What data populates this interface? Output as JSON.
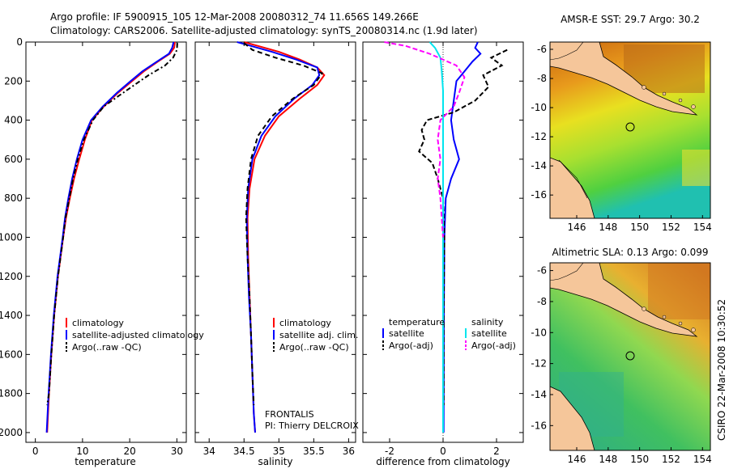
{
  "header": {
    "line1": "Argo profile: IF 5900915_105 12-Mar-2008 20080312_74 11.656S 149.266E",
    "line2": "Climatology: CARS2006. Satellite-adjusted climatology: synTS_20080314.nc (1.9d later)"
  },
  "side_label": "CSIRO 22-Mar-2008 10:30:52",
  "colors": {
    "climatology": "#ff0000",
    "satellite": "#0000ff",
    "argo": "#000000",
    "salinity_satellite": "#00e5ee",
    "salinity_argo": "#ff00ff",
    "land": "#f5c69a"
  },
  "chart_data": [
    {
      "id": "temperature",
      "type": "line",
      "xlabel": "temperature",
      "ylabel": "",
      "xlim": [
        -2,
        32
      ],
      "ylim": [
        2050,
        0
      ],
      "xticks": [
        0,
        10,
        20,
        30
      ],
      "yticks": [
        0,
        200,
        400,
        600,
        800,
        1000,
        1200,
        1400,
        1600,
        1800,
        2000
      ],
      "legend": [
        {
          "label": "climatology",
          "color": "#ff0000"
        },
        {
          "label": "satellite-adjusted climatology",
          "color": "#0000ff"
        },
        {
          "label": "Argo(..raw -QC)",
          "color": "#000000"
        }
      ],
      "series": [
        {
          "name": "climatology",
          "color": "#ff0000",
          "dash": "",
          "points": [
            [
              29.6,
              0
            ],
            [
              29.4,
              30
            ],
            [
              28.5,
              60
            ],
            [
              26,
              100
            ],
            [
              23,
              150
            ],
            [
              20.5,
              200
            ],
            [
              17.5,
              260
            ],
            [
              14.5,
              330
            ],
            [
              12,
              400
            ],
            [
              10.5,
              500
            ],
            [
              9.3,
              600
            ],
            [
              8.2,
              700
            ],
            [
              7.3,
              800
            ],
            [
              6.5,
              900
            ],
            [
              5.9,
              1000
            ],
            [
              4.8,
              1200
            ],
            [
              4,
              1400
            ],
            [
              3.4,
              1600
            ],
            [
              2.9,
              1800
            ],
            [
              2.5,
              2000
            ]
          ]
        },
        {
          "name": "satellite",
          "color": "#0000ff",
          "dash": "",
          "points": [
            [
              29.3,
              0
            ],
            [
              29,
              30
            ],
            [
              28.3,
              60
            ],
            [
              25.8,
              100
            ],
            [
              22.7,
              150
            ],
            [
              20.2,
              200
            ],
            [
              17.3,
              260
            ],
            [
              14.3,
              330
            ],
            [
              11.8,
              400
            ],
            [
              10,
              500
            ],
            [
              8.8,
              600
            ],
            [
              7.8,
              700
            ],
            [
              7,
              800
            ],
            [
              6.3,
              900
            ],
            [
              5.8,
              1000
            ],
            [
              4.7,
              1200
            ],
            [
              3.9,
              1400
            ],
            [
              3.3,
              1600
            ],
            [
              2.8,
              1800
            ],
            [
              2.4,
              2000
            ]
          ]
        },
        {
          "name": "Argo",
          "color": "#000000",
          "dash": "6,3,2,3",
          "points": [
            [
              30.1,
              5
            ],
            [
              30,
              40
            ],
            [
              29.2,
              80
            ],
            [
              27.5,
              120
            ],
            [
              24,
              170
            ],
            [
              21,
              220
            ],
            [
              18,
              270
            ],
            [
              14.5,
              330
            ],
            [
              12.2,
              400
            ],
            [
              10.3,
              500
            ],
            [
              9,
              600
            ],
            [
              8,
              700
            ],
            [
              7.2,
              800
            ],
            [
              6.4,
              900
            ],
            [
              5.9,
              1000
            ],
            [
              4.8,
              1200
            ],
            [
              4,
              1400
            ],
            [
              3.4,
              1600
            ],
            [
              2.9,
              1800
            ],
            [
              2.5,
              1860
            ]
          ]
        }
      ]
    },
    {
      "id": "salinity",
      "type": "line",
      "xlabel": "salinity",
      "ylabel": "",
      "xlim": [
        33.8,
        36.1
      ],
      "ylim": [
        2050,
        0
      ],
      "xticks": [
        34,
        34.5,
        35,
        35.5,
        36
      ],
      "legend": [
        {
          "label": "climatology",
          "color": "#ff0000"
        },
        {
          "label": "satellite adj. clim.",
          "color": "#0000ff"
        },
        {
          "label": "Argo(..raw -QC)",
          "color": "#000000"
        }
      ],
      "annotation": [
        "FRONTALIS",
        "PI: Thierry DELCROIX"
      ],
      "series": [
        {
          "name": "climatology",
          "color": "#ff0000",
          "dash": "",
          "points": [
            [
              34.5,
              0
            ],
            [
              34.7,
              20
            ],
            [
              35.0,
              50
            ],
            [
              35.3,
              90
            ],
            [
              35.55,
              130
            ],
            [
              35.65,
              170
            ],
            [
              35.55,
              220
            ],
            [
              35.3,
              290
            ],
            [
              35.0,
              380
            ],
            [
              34.8,
              480
            ],
            [
              34.65,
              600
            ],
            [
              34.58,
              750
            ],
            [
              34.55,
              900
            ],
            [
              34.56,
              1100
            ],
            [
              34.58,
              1300
            ],
            [
              34.6,
              1500
            ],
            [
              34.62,
              1700
            ],
            [
              34.64,
              1900
            ],
            [
              34.66,
              2000
            ]
          ]
        },
        {
          "name": "satellite",
          "color": "#0000ff",
          "dash": "",
          "points": [
            [
              34.4,
              0
            ],
            [
              34.6,
              20
            ],
            [
              34.9,
              50
            ],
            [
              35.25,
              90
            ],
            [
              35.55,
              130
            ],
            [
              35.58,
              170
            ],
            [
              35.48,
              220
            ],
            [
              35.22,
              290
            ],
            [
              34.95,
              380
            ],
            [
              34.75,
              480
            ],
            [
              34.62,
              600
            ],
            [
              34.56,
              750
            ],
            [
              34.54,
              900
            ],
            [
              34.55,
              1100
            ],
            [
              34.57,
              1300
            ],
            [
              34.6,
              1500
            ],
            [
              34.62,
              1700
            ],
            [
              34.64,
              1900
            ],
            [
              34.66,
              2000
            ]
          ]
        },
        {
          "name": "Argo",
          "color": "#000000",
          "dash": "6,4",
          "points": [
            [
              34.5,
              5
            ],
            [
              34.62,
              40
            ],
            [
              34.95,
              80
            ],
            [
              35.35,
              120
            ],
            [
              35.62,
              160
            ],
            [
              35.5,
              220
            ],
            [
              35.2,
              290
            ],
            [
              34.9,
              380
            ],
            [
              34.7,
              480
            ],
            [
              34.6,
              600
            ],
            [
              34.55,
              750
            ],
            [
              34.53,
              900
            ],
            [
              34.55,
              1100
            ],
            [
              34.58,
              1300
            ],
            [
              34.6,
              1500
            ],
            [
              34.62,
              1700
            ],
            [
              34.64,
              1860
            ]
          ]
        }
      ]
    },
    {
      "id": "difference",
      "type": "line",
      "xlabel": "difference from climatology",
      "ylabel": "",
      "xlim": [
        -3,
        3
      ],
      "ylim": [
        2050,
        0
      ],
      "xticks": [
        -2,
        0,
        2
      ],
      "legend_left": [
        {
          "label": "temperature",
          "color": ""
        },
        {
          "label": "satellite",
          "color": "#0000ff"
        },
        {
          "label": "Argo(-adj)",
          "color": "#000000"
        }
      ],
      "legend_right": [
        {
          "label": "salinity",
          "color": ""
        },
        {
          "label": "satellite",
          "color": "#00e5ee"
        },
        {
          "label": "Argo(-adj)",
          "color": "#ff00ff"
        }
      ],
      "series": [
        {
          "name": "temperature satellite",
          "color": "#0000ff",
          "dash": "",
          "points": [
            [
              1.3,
              0
            ],
            [
              1.2,
              30
            ],
            [
              1.4,
              60
            ],
            [
              1.1,
              100
            ],
            [
              0.8,
              150
            ],
            [
              0.5,
              200
            ],
            [
              0.4,
              300
            ],
            [
              0.3,
              400
            ],
            [
              0.4,
              500
            ],
            [
              0.6,
              600
            ],
            [
              0.3,
              700
            ],
            [
              0.1,
              800
            ],
            [
              0.05,
              1000
            ],
            [
              0.03,
              1400
            ],
            [
              0.02,
              2000
            ]
          ]
        },
        {
          "name": "temperature Argo",
          "color": "#000000",
          "dash": "6,3",
          "points": [
            [
              2.4,
              40
            ],
            [
              1.8,
              80
            ],
            [
              2.2,
              120
            ],
            [
              1.5,
              170
            ],
            [
              1.7,
              230
            ],
            [
              1.2,
              300
            ],
            [
              0.4,
              360
            ],
            [
              -0.6,
              400
            ],
            [
              -0.8,
              450
            ],
            [
              -0.7,
              500
            ],
            [
              -0.9,
              560
            ],
            [
              -0.4,
              620
            ],
            [
              -0.2,
              700
            ],
            [
              0,
              800
            ],
            [
              0.05,
              1000
            ],
            [
              0.02,
              1400
            ],
            [
              0.02,
              1860
            ]
          ]
        },
        {
          "name": "salinity satellite",
          "color": "#00e5ee",
          "dash": "",
          "points": [
            [
              -0.5,
              0
            ],
            [
              -0.3,
              30
            ],
            [
              -0.1,
              80
            ],
            [
              -0.05,
              150
            ],
            [
              0,
              250
            ],
            [
              0,
              400
            ],
            [
              0,
              800
            ],
            [
              0,
              1200
            ],
            [
              0,
              1600
            ],
            [
              0,
              2000
            ]
          ]
        },
        {
          "name": "salinity Argo",
          "color": "#ff00ff",
          "dash": "6,3",
          "points": [
            [
              -2.2,
              0
            ],
            [
              -1.4,
              20
            ],
            [
              -0.5,
              60
            ],
            [
              0.5,
              120
            ],
            [
              0.8,
              180
            ],
            [
              0.6,
              260
            ],
            [
              0.4,
              330
            ],
            [
              -0.1,
              400
            ],
            [
              -0.2,
              500
            ],
            [
              -0.1,
              600
            ],
            [
              -0.2,
              700
            ],
            [
              -0.1,
              800
            ],
            [
              0,
              1000
            ]
          ]
        }
      ]
    },
    {
      "id": "sst_map",
      "type": "heatmap",
      "title": "AMSR-E SST: 29.7 Argo: 30.2",
      "xticks": [
        146,
        148,
        150,
        152,
        154
      ],
      "yticks": [
        -6,
        -8,
        -10,
        -12,
        -14,
        -16
      ],
      "xlim": [
        144.3,
        154.5
      ],
      "ylim": [
        -17.6,
        -5.5
      ],
      "marker": {
        "lon": 149.266,
        "lat": -11.656
      }
    },
    {
      "id": "sla_map",
      "type": "heatmap",
      "title": "Altimetric SLA: 0.13 Argo: 0.099",
      "xticks": [
        146,
        148,
        150,
        152,
        154
      ],
      "yticks": [
        -6,
        -8,
        -10,
        -12,
        -14,
        -16
      ],
      "xlim": [
        144.3,
        154.5
      ],
      "ylim": [
        -17.6,
        -5.5
      ],
      "marker": {
        "lon": 149.266,
        "lat": -11.656
      }
    }
  ]
}
